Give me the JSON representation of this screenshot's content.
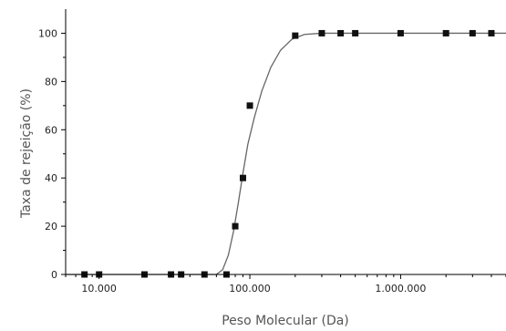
{
  "chart_data": {
    "type": "scatter",
    "xlabel": "Peso Molecular (Da)",
    "ylabel": "Taxa de rejeição (%)",
    "x_scale": "log",
    "xlim": [
      6000,
      5000000
    ],
    "ylim": [
      0,
      110
    ],
    "grid": false,
    "x_ticks": [
      {
        "value": 10000,
        "label": "10.000"
      },
      {
        "value": 100000,
        "label": "100.000"
      },
      {
        "value": 1000000,
        "label": "1.000.000"
      }
    ],
    "y_ticks": [
      {
        "value": 0,
        "label": "0"
      },
      {
        "value": 20,
        "label": "20"
      },
      {
        "value": 40,
        "label": "40"
      },
      {
        "value": 60,
        "label": "60"
      },
      {
        "value": 80,
        "label": "80"
      },
      {
        "value": 100,
        "label": "100"
      }
    ],
    "points": [
      {
        "x": 8000,
        "y": 0
      },
      {
        "x": 10000,
        "y": 0
      },
      {
        "x": 20000,
        "y": 0
      },
      {
        "x": 30000,
        "y": 0
      },
      {
        "x": 35000,
        "y": 0
      },
      {
        "x": 50000,
        "y": 0
      },
      {
        "x": 70000,
        "y": 0
      },
      {
        "x": 80000,
        "y": 20
      },
      {
        "x": 90000,
        "y": 40
      },
      {
        "x": 100000,
        "y": 70
      },
      {
        "x": 200000,
        "y": 99
      },
      {
        "x": 300000,
        "y": 100
      },
      {
        "x": 400000,
        "y": 100
      },
      {
        "x": 500000,
        "y": 100
      },
      {
        "x": 1000000,
        "y": 100
      },
      {
        "x": 2000000,
        "y": 100
      },
      {
        "x": 3000000,
        "y": 100
      },
      {
        "x": 4000000,
        "y": 100
      }
    ],
    "fit_curve": [
      {
        "x": 6000,
        "y": 0
      },
      {
        "x": 60000,
        "y": 0
      },
      {
        "x": 66000,
        "y": 2
      },
      {
        "x": 72000,
        "y": 8
      },
      {
        "x": 78000,
        "y": 18
      },
      {
        "x": 84000,
        "y": 30
      },
      {
        "x": 90000,
        "y": 42
      },
      {
        "x": 97000,
        "y": 54
      },
      {
        "x": 107000,
        "y": 65
      },
      {
        "x": 120000,
        "y": 76
      },
      {
        "x": 138000,
        "y": 86
      },
      {
        "x": 160000,
        "y": 93
      },
      {
        "x": 190000,
        "y": 97.5
      },
      {
        "x": 230000,
        "y": 99.5
      },
      {
        "x": 300000,
        "y": 100
      },
      {
        "x": 5000000,
        "y": 100
      }
    ],
    "colors": {
      "marker": "#111111",
      "curve": "#666666",
      "axis": "#000000"
    }
  }
}
